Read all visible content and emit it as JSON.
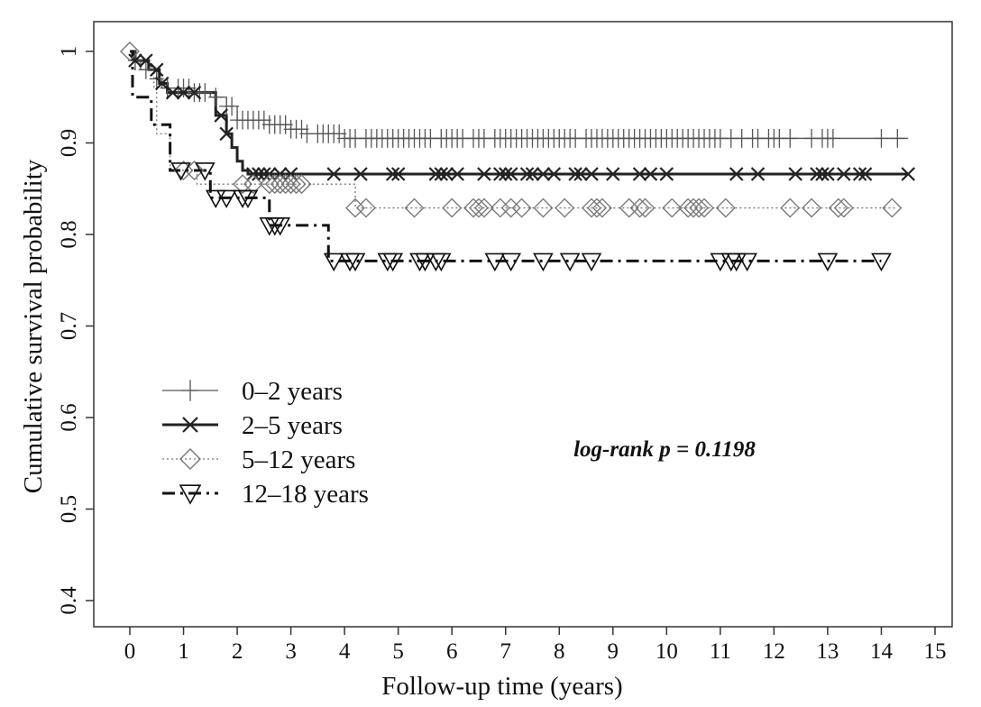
{
  "chart_data": {
    "type": "line",
    "xlabel": "Follow-up time (years)",
    "ylabel": "Cumulative survival probability",
    "xlim": [
      -0.6,
      15.3
    ],
    "ylim": [
      0.38,
      1.03
    ],
    "x_ticks": [
      0,
      1,
      2,
      3,
      4,
      5,
      6,
      7,
      8,
      9,
      10,
      11,
      12,
      13,
      14,
      15
    ],
    "y_ticks": [
      0.4,
      0.5,
      0.6,
      0.7,
      0.8,
      0.9,
      1
    ],
    "x_tick_labels": [
      "0",
      "1",
      "2",
      "3",
      "4",
      "5",
      "6",
      "7",
      "8",
      "9",
      "10",
      "11",
      "12",
      "13",
      "14",
      "15"
    ],
    "y_tick_labels": [
      "0.4",
      "0.5",
      "0.6",
      "0.7",
      "0.8",
      "0.9",
      "1"
    ],
    "grid": false,
    "legend_position": "bottom-left",
    "annotation": "log-rank p = 0.1198",
    "series": [
      {
        "name": "0–2 years",
        "marker": "plus",
        "line_style": "solid-thin",
        "color": "#555555",
        "steps": [
          [
            0,
            1.0
          ],
          [
            0.05,
            0.99
          ],
          [
            0.2,
            0.98
          ],
          [
            0.5,
            0.97
          ],
          [
            0.6,
            0.96
          ],
          [
            1.2,
            0.955
          ],
          [
            1.5,
            0.95
          ],
          [
            1.8,
            0.94
          ],
          [
            2.0,
            0.925
          ],
          [
            2.6,
            0.92
          ],
          [
            3.0,
            0.915
          ],
          [
            3.3,
            0.91
          ],
          [
            4.0,
            0.905
          ],
          [
            14.5,
            0.905
          ]
        ],
        "censored": [
          0.1,
          0.3,
          0.5,
          0.7,
          0.9,
          1.0,
          1.1,
          1.2,
          1.3,
          1.4,
          1.6,
          1.8,
          1.9,
          2.0,
          2.1,
          2.2,
          2.3,
          2.4,
          2.5,
          2.6,
          2.7,
          2.8,
          2.9,
          3.0,
          3.1,
          3.2,
          3.3,
          3.5,
          3.6,
          3.7,
          3.8,
          3.9,
          4.0,
          4.1,
          4.2,
          4.4,
          4.5,
          4.6,
          4.7,
          4.8,
          4.9,
          5.0,
          5.1,
          5.2,
          5.3,
          5.4,
          5.5,
          5.6,
          5.8,
          5.9,
          6.0,
          6.1,
          6.2,
          6.4,
          6.5,
          6.6,
          6.8,
          6.9,
          7.0,
          7.1,
          7.2,
          7.3,
          7.4,
          7.5,
          7.6,
          7.7,
          7.8,
          7.9,
          8.0,
          8.1,
          8.2,
          8.3,
          8.5,
          8.6,
          8.7,
          8.8,
          8.9,
          9.0,
          9.1,
          9.2,
          9.3,
          9.4,
          9.5,
          9.6,
          9.7,
          9.8,
          9.9,
          10.0,
          10.1,
          10.2,
          10.3,
          10.4,
          10.5,
          10.6,
          10.7,
          10.8,
          10.9,
          11.0,
          11.2,
          11.4,
          11.6,
          11.7,
          11.9,
          12.0,
          12.1,
          12.3,
          12.7,
          12.9,
          13.0,
          13.1,
          14.0,
          14.3
        ]
      },
      {
        "name": "2–5 years",
        "marker": "x",
        "line_style": "solid-thick",
        "color": "#222222",
        "steps": [
          [
            0,
            1.0
          ],
          [
            0.1,
            0.99
          ],
          [
            0.35,
            0.98
          ],
          [
            0.55,
            0.965
          ],
          [
            0.7,
            0.955
          ],
          [
            1.6,
            0.93
          ],
          [
            1.8,
            0.91
          ],
          [
            1.9,
            0.895
          ],
          [
            2.0,
            0.88
          ],
          [
            2.1,
            0.87
          ],
          [
            2.2,
            0.866
          ],
          [
            14.5,
            0.866
          ]
        ],
        "censored": [
          0.1,
          0.3,
          0.5,
          0.6,
          0.8,
          1.0,
          1.2,
          1.7,
          1.8,
          2.3,
          2.4,
          2.5,
          2.6,
          2.8,
          3.0,
          3.8,
          4.3,
          4.9,
          5.0,
          5.7,
          5.8,
          5.9,
          6.1,
          6.6,
          6.9,
          7.0,
          7.1,
          7.4,
          7.5,
          7.7,
          7.9,
          8.3,
          8.4,
          8.6,
          9.0,
          9.5,
          9.7,
          10.0,
          11.3,
          11.7,
          12.4,
          12.8,
          12.9,
          13.0,
          13.3,
          13.6,
          13.7,
          14.5
        ]
      },
      {
        "name": "5–12 years",
        "marker": "diamond",
        "line_style": "dotted",
        "color": "#777777",
        "steps": [
          [
            0,
            1.0
          ],
          [
            0.05,
            0.98
          ],
          [
            0.45,
            0.96
          ],
          [
            0.5,
            0.91
          ],
          [
            0.75,
            0.87
          ],
          [
            1.25,
            0.855
          ],
          [
            2.0,
            0.855
          ],
          [
            4.2,
            0.829
          ],
          [
            14.3,
            0.829
          ]
        ],
        "censored": [
          0.0,
          1.0,
          1.2,
          2.1,
          2.3,
          2.6,
          2.7,
          2.8,
          2.9,
          3.0,
          3.1,
          3.2,
          4.2,
          4.4,
          5.3,
          6.0,
          6.4,
          6.5,
          6.6,
          6.9,
          7.1,
          7.3,
          7.7,
          8.1,
          8.6,
          8.7,
          8.8,
          9.3,
          9.5,
          9.6,
          10.1,
          10.4,
          10.5,
          10.6,
          10.7,
          11.1,
          12.3,
          12.7,
          13.2,
          13.3,
          14.2
        ]
      },
      {
        "name": "12–18 years",
        "marker": "triangle-down",
        "line_style": "dash-dot",
        "color": "#111111",
        "steps": [
          [
            0,
            1.0
          ],
          [
            0.05,
            0.95
          ],
          [
            0.4,
            0.92
          ],
          [
            0.75,
            0.87
          ],
          [
            1.5,
            0.84
          ],
          [
            2.6,
            0.81
          ],
          [
            3.7,
            0.771
          ],
          [
            14.0,
            0.771
          ]
        ],
        "censored": [
          0.95,
          1.4,
          1.6,
          1.8,
          2.1,
          2.2,
          2.6,
          2.7,
          2.8,
          3.8,
          4.1,
          4.2,
          4.8,
          4.9,
          5.4,
          5.5,
          5.7,
          5.8,
          6.8,
          7.1,
          7.7,
          8.2,
          8.6,
          11.0,
          11.2,
          11.3,
          11.5,
          13.0,
          14.0
        ]
      }
    ]
  }
}
